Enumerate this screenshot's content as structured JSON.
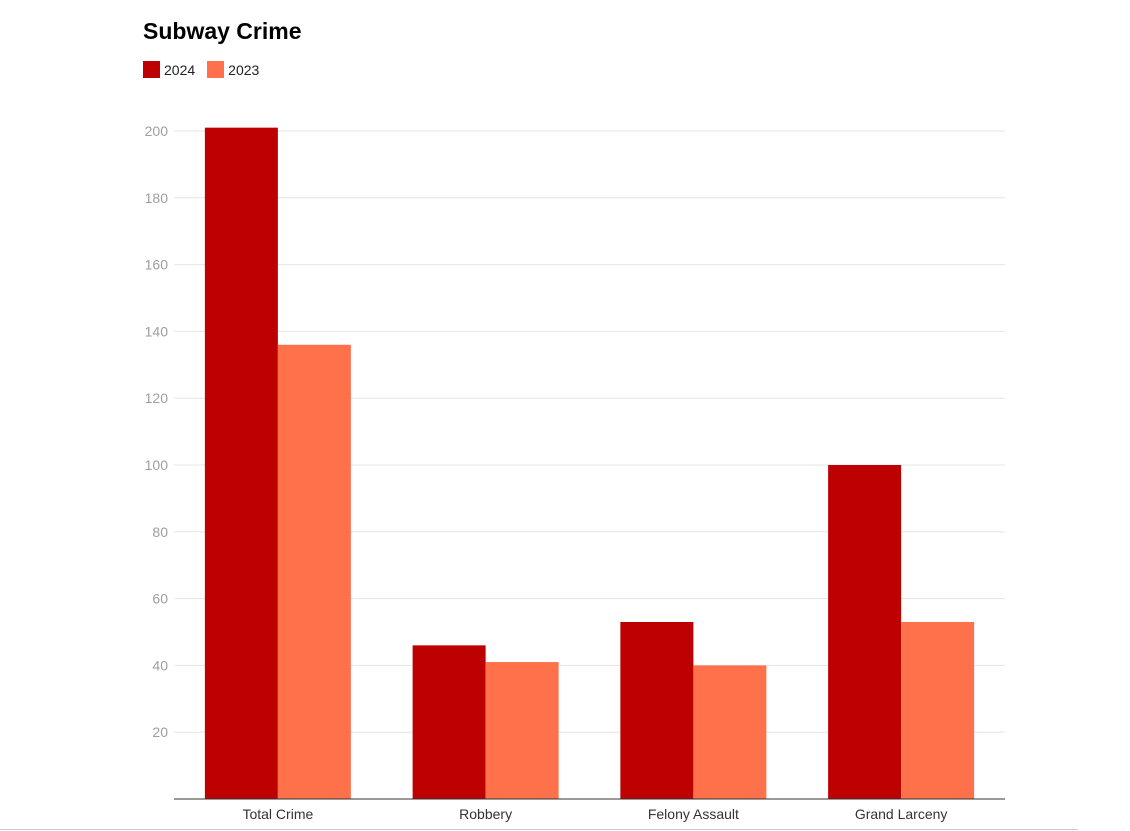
{
  "chart_data": {
    "type": "bar",
    "title": "Subway Crime",
    "categories": [
      "Total Crime",
      "Robbery",
      "Felony Assault",
      "Grand Larceny"
    ],
    "series": [
      {
        "name": "2024",
        "values": [
          201,
          46,
          53,
          100
        ],
        "color": "#bd0000"
      },
      {
        "name": "2023",
        "values": [
          136,
          41,
          40,
          53
        ],
        "color": "#ff714b"
      }
    ],
    "xlabel": "",
    "ylabel": "",
    "ylim": [
      0,
      200
    ],
    "yticks": [
      20,
      40,
      60,
      80,
      100,
      120,
      140,
      160,
      180,
      200
    ],
    "grid": true,
    "legend_position": "top-left"
  }
}
